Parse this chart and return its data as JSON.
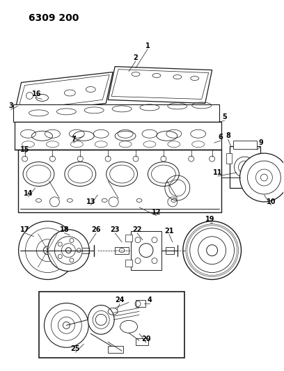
{
  "title": "6309 200",
  "bg_color": "#ffffff",
  "line_color": "#1a1a1a",
  "title_fontsize": 10,
  "label_fontsize": 7,
  "fig_width": 4.08,
  "fig_height": 5.33,
  "dpi": 100
}
